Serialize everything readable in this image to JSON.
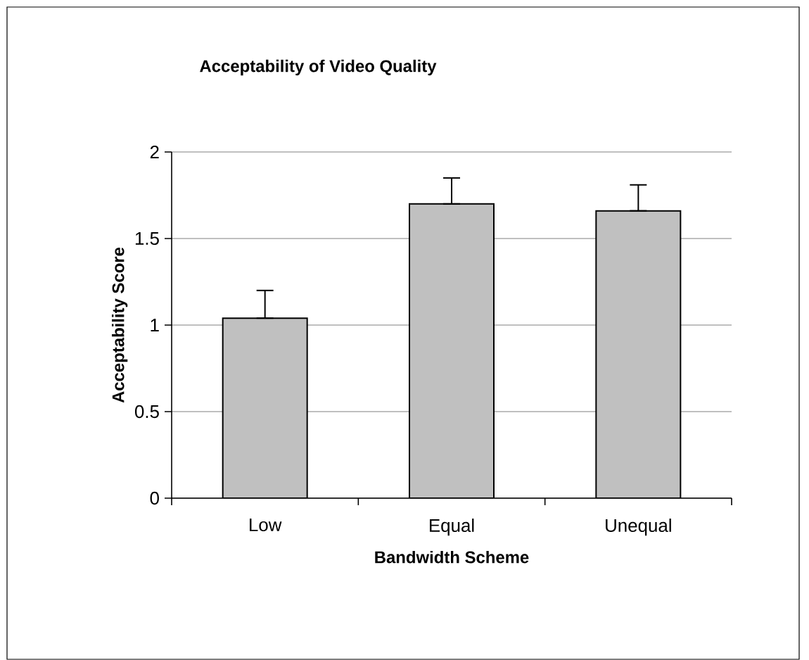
{
  "chart_data": {
    "type": "bar",
    "title": "Acceptability of Video Quality",
    "xlabel": "Bandwidth Scheme",
    "ylabel": "Acceptability Score",
    "categories": [
      "Low",
      "Equal",
      "Unequal"
    ],
    "values": [
      1.04,
      1.7,
      1.66
    ],
    "errors": [
      [
        1.04,
        1.2
      ],
      [
        1.7,
        1.85
      ],
      [
        1.66,
        1.81
      ]
    ],
    "color": "#c0c0c0",
    "ylim": [
      0,
      2
    ],
    "yticks": [
      0,
      0.5,
      1,
      1.5,
      2
    ],
    "grid": "y"
  }
}
